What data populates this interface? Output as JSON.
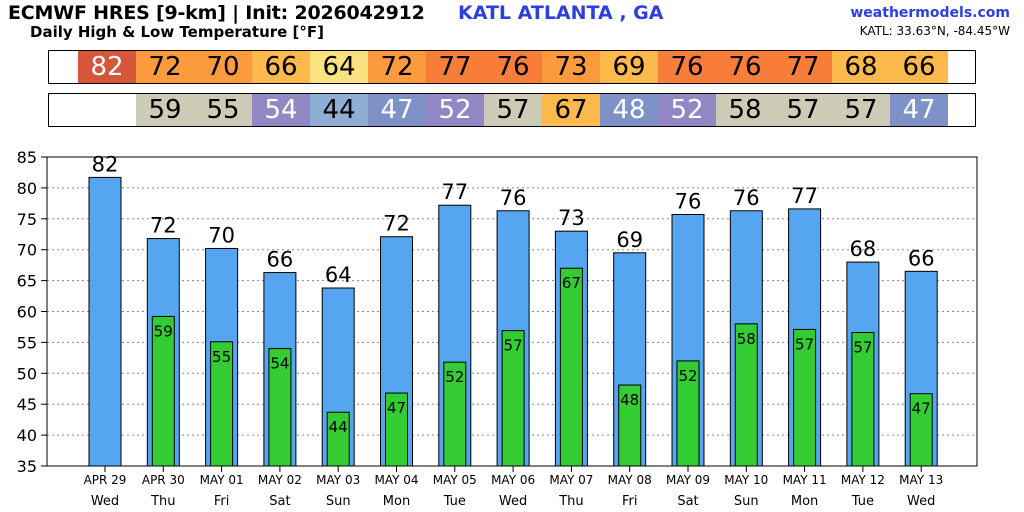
{
  "header": {
    "title": "ECMWF HRES [9-km] | Init: 2026042912",
    "station": "KATL ATLANTA        , GA",
    "subtitle": "Daily High & Low Temperature [°F]",
    "site": "weathermodels.com",
    "coords": "KATL: 33.63°N, -84.45°W"
  },
  "colors": {
    "high_bar": "#55a5f0",
    "low_bar": "#33cc33",
    "temp_scale": [
      {
        "min": 40,
        "max": 44,
        "bg": "#8eaed4",
        "fg": "#000000"
      },
      {
        "min": 45,
        "max": 49,
        "bg": "#7f92c8",
        "fg": "#ffffff"
      },
      {
        "min": 50,
        "max": 54,
        "bg": "#9188c4",
        "fg": "#ffffff"
      },
      {
        "min": 55,
        "max": 59,
        "bg": "#cbcbb6",
        "fg": "#000000"
      },
      {
        "min": 60,
        "max": 64,
        "bg": "#fae27e",
        "fg": "#000000"
      },
      {
        "min": 65,
        "max": 69,
        "bg": "#fdb94c",
        "fg": "#000000"
      },
      {
        "min": 70,
        "max": 74,
        "bg": "#fc9b3e",
        "fg": "#000000"
      },
      {
        "min": 75,
        "max": 79,
        "bg": "#f77d38",
        "fg": "#000000"
      },
      {
        "min": 80,
        "max": 84,
        "bg": "#d6563a",
        "fg": "#ffffff"
      }
    ]
  },
  "chart_data": {
    "type": "bar",
    "title": "Daily High & Low Temperature [°F]",
    "ylabel": "°F",
    "ylim": [
      35,
      85
    ],
    "yticks": [
      35,
      40,
      45,
      50,
      55,
      60,
      65,
      70,
      75,
      80,
      85
    ],
    "grid": true,
    "categories": [
      "APR 29",
      "APR 30",
      "MAY 01",
      "MAY 02",
      "MAY 03",
      "MAY 04",
      "MAY 05",
      "MAY 06",
      "MAY 07",
      "MAY 08",
      "MAY 09",
      "MAY 10",
      "MAY 11",
      "MAY 12",
      "MAY 13"
    ],
    "weekdays": [
      "Wed",
      "Thu",
      "Fri",
      "Sat",
      "Sun",
      "Mon",
      "Tue",
      "Wed",
      "Thu",
      "Fri",
      "Sat",
      "Sun",
      "Mon",
      "Tue",
      "Wed"
    ],
    "series": [
      {
        "name": "High",
        "values": [
          82,
          72,
          70,
          66,
          64,
          72,
          77,
          76,
          73,
          69,
          76,
          76,
          77,
          68,
          66
        ],
        "exact": [
          81.7,
          71.8,
          70.2,
          66.3,
          63.8,
          72.1,
          77.2,
          76.3,
          73.0,
          69.5,
          75.7,
          76.3,
          76.6,
          68.0,
          66.5
        ]
      },
      {
        "name": "Low",
        "values": [
          null,
          59,
          55,
          54,
          44,
          47,
          52,
          57,
          67,
          48,
          52,
          58,
          57,
          57,
          47
        ],
        "exact": [
          null,
          59.2,
          55.1,
          54.0,
          43.7,
          46.8,
          51.8,
          56.9,
          67.0,
          48.1,
          52.0,
          58.0,
          57.1,
          56.6,
          46.7
        ]
      }
    ]
  }
}
